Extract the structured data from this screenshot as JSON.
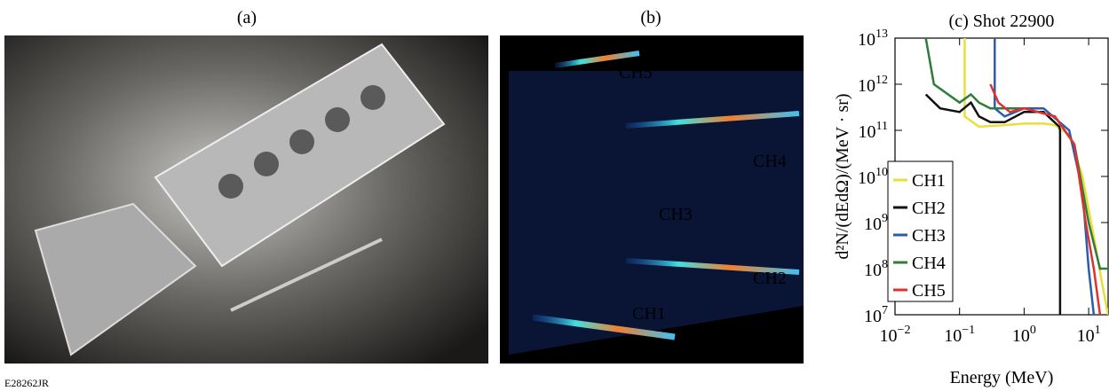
{
  "panels": [
    {
      "label": "(a)"
    },
    {
      "label": "(b)",
      "annotations": [
        "CH5",
        "CH4",
        "CH3",
        "CH2",
        "CH1"
      ]
    }
  ],
  "figure_id": "E28262JR",
  "chart_data": {
    "type": "line",
    "title": "(c) Shot 22900",
    "x_label": "Energy (MeV)",
    "y_label": "d²N/(dEdΩ)/(MeV · sr)",
    "log_x": true,
    "log_y": true,
    "legend": "lower left",
    "xlim": [
      0.01,
      20
    ],
    "ylim": [
      10000000,
      10000000000000
    ],
    "xticks": [
      {
        "value": 0.01,
        "label": "10",
        "exponent": "−2"
      },
      {
        "value": 0.1,
        "label": "10",
        "exponent": "−1"
      },
      {
        "value": 1,
        "label": "10",
        "exponent": "0"
      },
      {
        "value": 10,
        "label": "10",
        "exponent": "1"
      }
    ],
    "yticks": [
      {
        "value": 10000000,
        "label": "10",
        "exponent": "7"
      },
      {
        "value": 100000000,
        "label": "10",
        "exponent": "8"
      },
      {
        "value": 1000000000,
        "label": "10",
        "exponent": "9"
      },
      {
        "value": 10000000000,
        "label": "10",
        "exponent": "10"
      },
      {
        "value": 100000000000,
        "label": "10",
        "exponent": "11"
      },
      {
        "value": 1000000000000,
        "label": "10",
        "exponent": "12"
      },
      {
        "value": 10000000000000,
        "label": "10",
        "exponent": "13"
      }
    ],
    "series": [
      {
        "name": "CH1",
        "color": "#e8e03a",
        "x": [
          0.12,
          0.12,
          0.2,
          0.5,
          1,
          2,
          3,
          5,
          8,
          12,
          16,
          20
        ],
        "values": [
          10000000000000,
          200000000000,
          120000000000,
          130000000000,
          140000000000,
          140000000000,
          130000000000,
          80000000000,
          10000000000,
          500000000,
          50000000,
          10000000
        ]
      },
      {
        "name": "CH2",
        "color": "#111111",
        "x": [
          0.03,
          0.05,
          0.1,
          0.15,
          0.2,
          0.3,
          0.5,
          1,
          2,
          3.5,
          3.6,
          3.6
        ],
        "values": [
          600000000000,
          300000000000,
          250000000000,
          400000000000,
          200000000000,
          150000000000,
          150000000000,
          250000000000,
          250000000000,
          120000000000,
          100000000000,
          10000000
        ]
      },
      {
        "name": "CH3",
        "color": "#2a5db0",
        "x": [
          0.35,
          0.35,
          0.5,
          1,
          2,
          5,
          8,
          10,
          12
        ],
        "values": [
          10000000000000,
          300000000000,
          200000000000,
          300000000000,
          300000000000,
          100000000000,
          5000000000,
          100000000,
          10000000
        ]
      },
      {
        "name": "CH4",
        "color": "#2e7d3a",
        "x": [
          0.03,
          0.04,
          0.1,
          0.15,
          0.2,
          0.3,
          1,
          3,
          6,
          10,
          15,
          20
        ],
        "values": [
          10000000000000,
          1000000000000,
          400000000000,
          600000000000,
          400000000000,
          300000000000,
          300000000000,
          200000000000,
          50000000000,
          1000000000,
          100000000,
          100000000
        ]
      },
      {
        "name": "CH5",
        "color": "#e03030",
        "x": [
          0.3,
          0.4,
          0.6,
          1,
          3,
          6,
          9,
          12,
          15
        ],
        "values": [
          1000000000000,
          400000000000,
          250000000000,
          300000000000,
          200000000000,
          50000000000,
          1000000000,
          100000000,
          10000000
        ]
      }
    ]
  }
}
